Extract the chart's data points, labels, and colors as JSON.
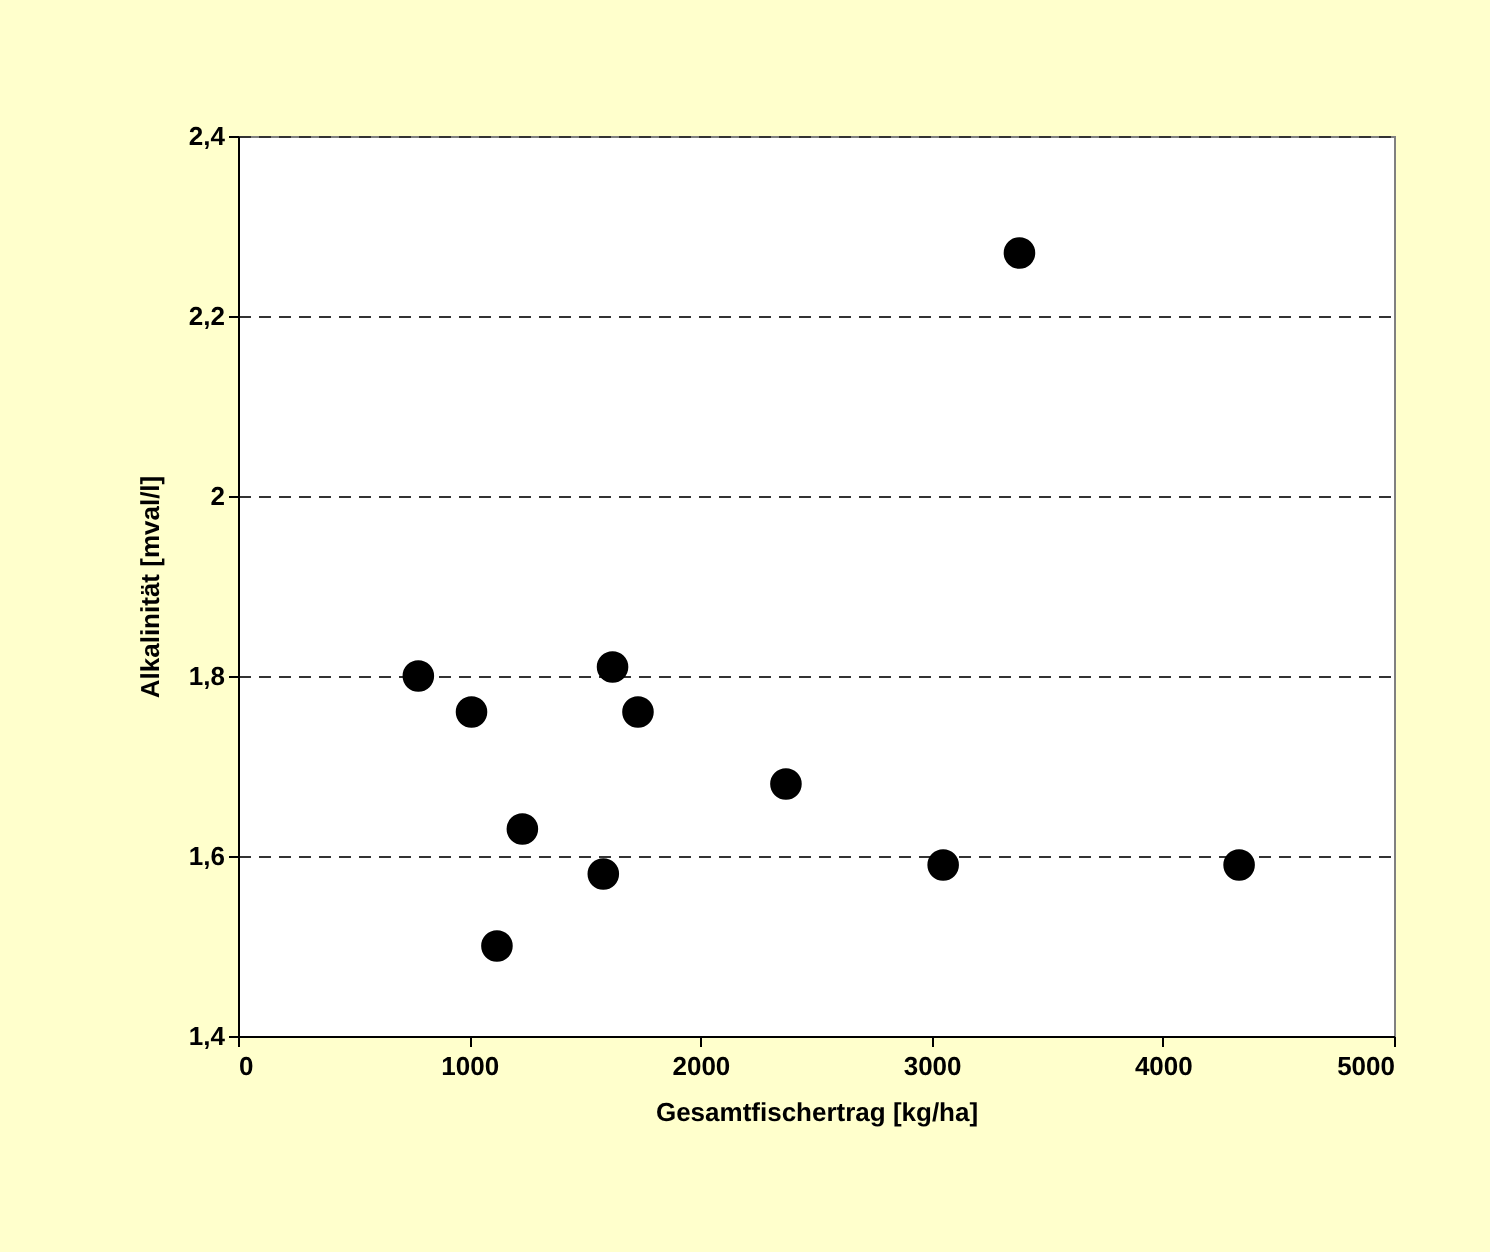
{
  "chart_data": {
    "type": "scatter",
    "xlabel": "Gesamtfischertrag [kg/ha]",
    "ylabel": "Alkalinität [mval/l]",
    "x": [
      780,
      1010,
      1230,
      1120,
      1620,
      1730,
      1580,
      3380,
      2370,
      3050,
      4330
    ],
    "series": [
      {
        "color": "#000000",
        "values": [
          1.8,
          1.76,
          1.63,
          1.5,
          1.81,
          1.76,
          1.58,
          2.27,
          1.68,
          1.59,
          1.59
        ]
      }
    ],
    "xlim": [
      0,
      5000
    ],
    "xticks": [
      0,
      1000,
      2000,
      3000,
      4000,
      5000
    ],
    "ylim": [
      1.4,
      2.4
    ],
    "yticks": [
      {
        "value": 1.4,
        "label": "1,4"
      },
      {
        "value": 1.6,
        "label": "1,6"
      },
      {
        "value": 1.8,
        "label": "1,8"
      },
      {
        "value": 2.0,
        "label": "2"
      },
      {
        "value": 2.2,
        "label": "2,2"
      },
      {
        "value": 2.4,
        "label": "2,4"
      }
    ],
    "grid": "y",
    "marker": "circle"
  }
}
